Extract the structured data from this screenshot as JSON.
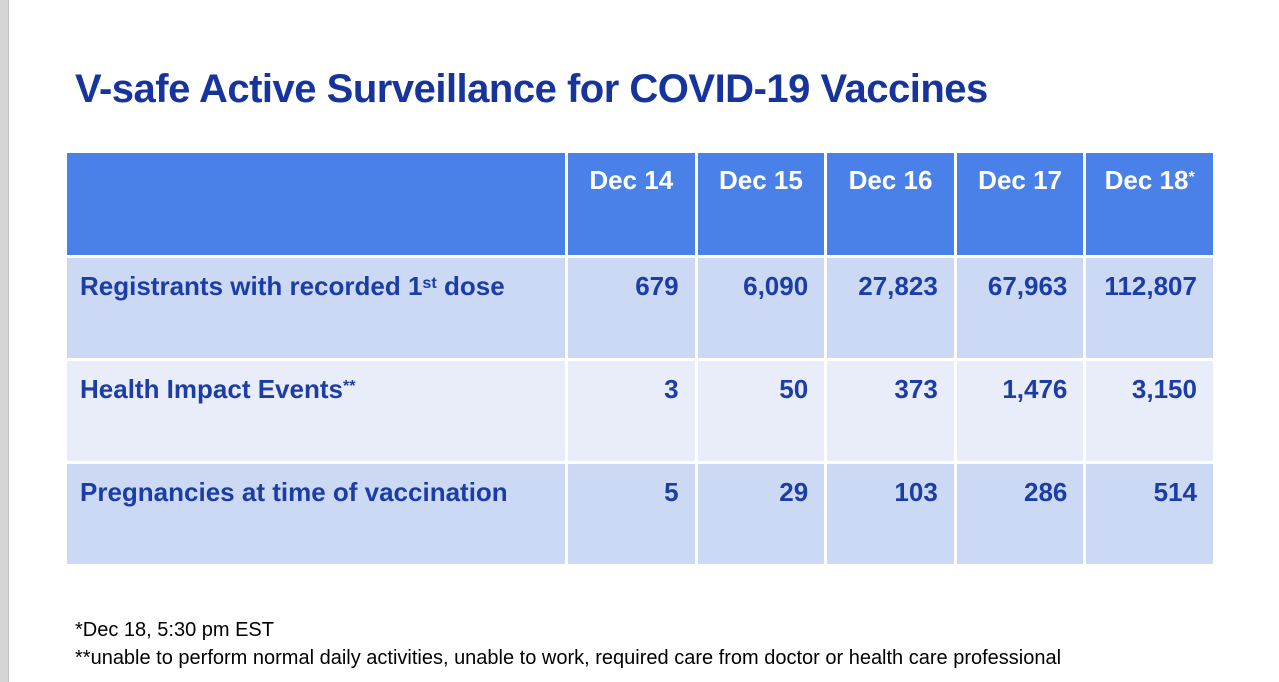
{
  "page": {
    "title": "V-safe Active Surveillance for COVID-19 Vaccines"
  },
  "table": {
    "columns": [
      {
        "label": "Dec 14",
        "sup": ""
      },
      {
        "label": "Dec 15",
        "sup": ""
      },
      {
        "label": "Dec 16",
        "sup": ""
      },
      {
        "label": "Dec 17",
        "sup": ""
      },
      {
        "label": "Dec 18",
        "sup": "*"
      }
    ],
    "rows": [
      {
        "label": {
          "pre": "Registrants with recorded 1",
          "sup": "st",
          "post": " dose"
        },
        "values": [
          "679",
          "6,090",
          "27,823",
          "67,963",
          "112,807"
        ]
      },
      {
        "label": {
          "pre": "Health Impact Events",
          "sup": "**",
          "post": ""
        },
        "values": [
          "3",
          "50",
          "373",
          "1,476",
          "3,150"
        ]
      },
      {
        "label": {
          "pre": "Pregnancies at time of vaccination",
          "sup": "",
          "post": ""
        },
        "values": [
          "5",
          "29",
          "103",
          "286",
          "514"
        ]
      }
    ]
  },
  "footnotes": {
    "line1": "*Dec 18, 5:30 pm EST",
    "line2": "**unable to perform normal daily activities, unable to work, required care from doctor or health care professional"
  },
  "colors": {
    "header_blue": "#4a81e8",
    "row_light_blue": "#ccd9f4",
    "row_light_lavender": "#e9edf9",
    "text_dark_blue": "#1c3da6",
    "title_dark_blue": "#16349c",
    "footnote_black": "#000000"
  }
}
